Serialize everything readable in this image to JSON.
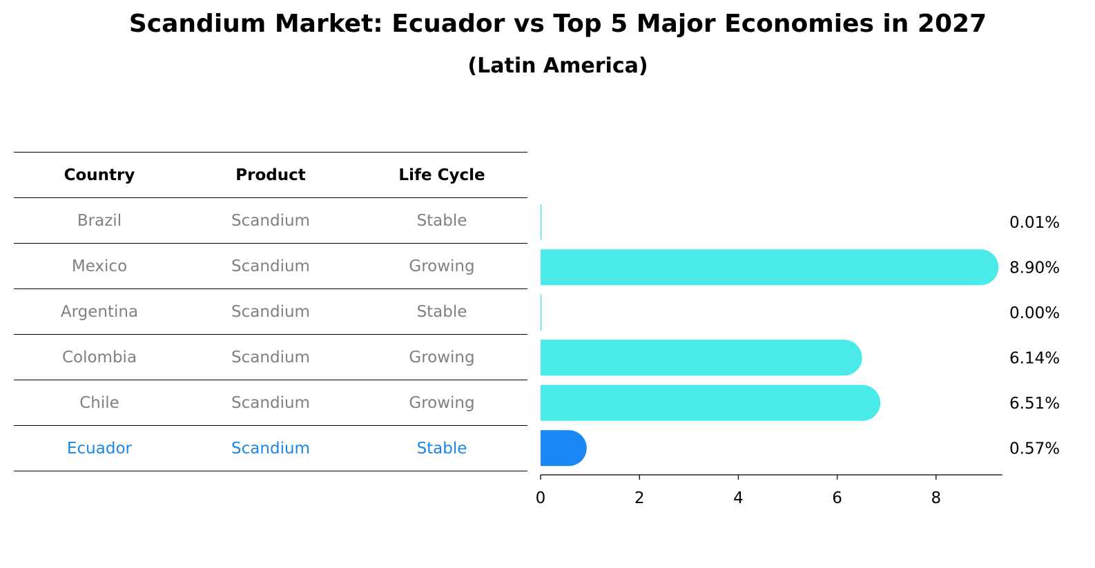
{
  "header": {
    "title": "Scandium Market: Ecuador vs Top 5 Major Economies in 2027",
    "subtitle": "(Latin America)"
  },
  "table": {
    "columns": [
      "Country",
      "Product",
      "Life Cycle"
    ],
    "rows": [
      {
        "country": "Brazil",
        "product": "Scandium",
        "life_cycle": "Stable",
        "highlight": false
      },
      {
        "country": "Mexico",
        "product": "Scandium",
        "life_cycle": "Growing",
        "highlight": false
      },
      {
        "country": "Argentina",
        "product": "Scandium",
        "life_cycle": "Stable",
        "highlight": false
      },
      {
        "country": "Colombia",
        "product": "Scandium",
        "life_cycle": "Growing",
        "highlight": false
      },
      {
        "country": "Chile",
        "product": "Scandium",
        "life_cycle": "Growing",
        "highlight": false
      },
      {
        "country": "Ecuador",
        "product": "Scandium",
        "life_cycle": "Stable",
        "highlight": true
      }
    ]
  },
  "chart_data": {
    "type": "bar",
    "orientation": "horizontal",
    "title": "Scandium Market: Ecuador vs Top 5 Major Economies in 2027",
    "subtitle": "(Latin America)",
    "categories": [
      "Brazil",
      "Mexico",
      "Argentina",
      "Colombia",
      "Chile",
      "Ecuador"
    ],
    "values": [
      0.01,
      8.9,
      0.0,
      6.14,
      6.51,
      0.57
    ],
    "value_labels": [
      "0.01%",
      "8.90%",
      "0.00%",
      "6.14%",
      "6.51%",
      "0.57%"
    ],
    "xticks": [
      0,
      2,
      4,
      6,
      8
    ],
    "xlim": [
      0,
      9.35
    ],
    "xlabel": "",
    "ylabel": "",
    "colors": {
      "default": "#4aeaea",
      "highlight": "#1a87f5"
    },
    "highlight_category": "Ecuador"
  }
}
